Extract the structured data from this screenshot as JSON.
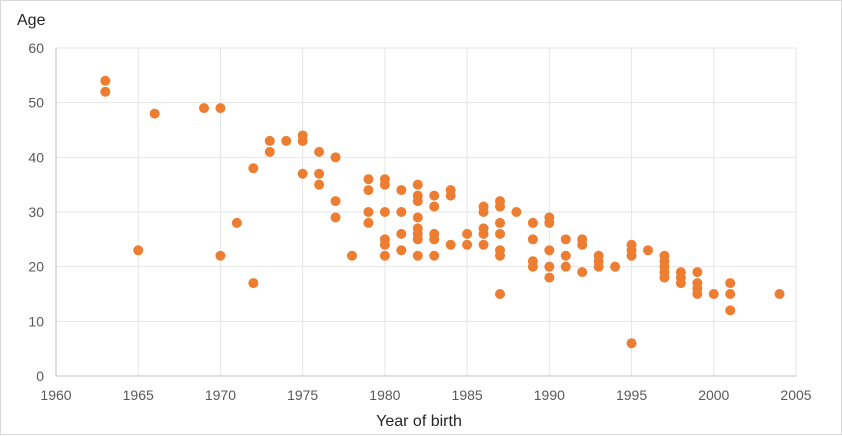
{
  "chart_data": {
    "type": "scatter",
    "title": "",
    "xlabel": "Year of birth",
    "ylabel": "Age",
    "xlim": [
      1960,
      2005
    ],
    "ylim": [
      0,
      60
    ],
    "x_ticks": [
      1960,
      1965,
      1970,
      1975,
      1980,
      1985,
      1990,
      1995,
      2000,
      2005
    ],
    "y_ticks": [
      0,
      10,
      20,
      30,
      40,
      50,
      60
    ],
    "grid": true,
    "legend": "none",
    "point_color": "#ed7d31",
    "points": [
      {
        "x": 1963,
        "y": 54
      },
      {
        "x": 1963,
        "y": 52
      },
      {
        "x": 1965,
        "y": 23
      },
      {
        "x": 1966,
        "y": 48
      },
      {
        "x": 1969,
        "y": 49
      },
      {
        "x": 1970,
        "y": 49
      },
      {
        "x": 1970,
        "y": 22
      },
      {
        "x": 1971,
        "y": 28
      },
      {
        "x": 1972,
        "y": 38
      },
      {
        "x": 1972,
        "y": 17
      },
      {
        "x": 1973,
        "y": 43
      },
      {
        "x": 1973,
        "y": 41
      },
      {
        "x": 1974,
        "y": 43
      },
      {
        "x": 1975,
        "y": 44
      },
      {
        "x": 1975,
        "y": 43
      },
      {
        "x": 1975,
        "y": 37
      },
      {
        "x": 1976,
        "y": 41
      },
      {
        "x": 1976,
        "y": 37
      },
      {
        "x": 1976,
        "y": 35
      },
      {
        "x": 1977,
        "y": 40
      },
      {
        "x": 1977,
        "y": 32
      },
      {
        "x": 1977,
        "y": 29
      },
      {
        "x": 1978,
        "y": 22
      },
      {
        "x": 1979,
        "y": 36
      },
      {
        "x": 1979,
        "y": 34
      },
      {
        "x": 1979,
        "y": 30
      },
      {
        "x": 1979,
        "y": 28
      },
      {
        "x": 1980,
        "y": 36
      },
      {
        "x": 1980,
        "y": 35
      },
      {
        "x": 1980,
        "y": 30
      },
      {
        "x": 1980,
        "y": 25
      },
      {
        "x": 1980,
        "y": 24
      },
      {
        "x": 1980,
        "y": 22
      },
      {
        "x": 1981,
        "y": 34
      },
      {
        "x": 1981,
        "y": 30
      },
      {
        "x": 1981,
        "y": 26
      },
      {
        "x": 1981,
        "y": 23
      },
      {
        "x": 1982,
        "y": 35
      },
      {
        "x": 1982,
        "y": 33
      },
      {
        "x": 1982,
        "y": 32
      },
      {
        "x": 1982,
        "y": 29
      },
      {
        "x": 1982,
        "y": 27
      },
      {
        "x": 1982,
        "y": 26
      },
      {
        "x": 1982,
        "y": 25
      },
      {
        "x": 1982,
        "y": 22
      },
      {
        "x": 1983,
        "y": 33
      },
      {
        "x": 1983,
        "y": 31
      },
      {
        "x": 1983,
        "y": 26
      },
      {
        "x": 1983,
        "y": 25
      },
      {
        "x": 1983,
        "y": 22
      },
      {
        "x": 1984,
        "y": 34
      },
      {
        "x": 1984,
        "y": 33
      },
      {
        "x": 1984,
        "y": 24
      },
      {
        "x": 1985,
        "y": 26
      },
      {
        "x": 1985,
        "y": 24
      },
      {
        "x": 1986,
        "y": 31
      },
      {
        "x": 1986,
        "y": 30
      },
      {
        "x": 1986,
        "y": 27
      },
      {
        "x": 1986,
        "y": 26
      },
      {
        "x": 1986,
        "y": 24
      },
      {
        "x": 1987,
        "y": 32
      },
      {
        "x": 1987,
        "y": 31
      },
      {
        "x": 1987,
        "y": 28
      },
      {
        "x": 1987,
        "y": 26
      },
      {
        "x": 1987,
        "y": 23
      },
      {
        "x": 1987,
        "y": 22
      },
      {
        "x": 1987,
        "y": 15
      },
      {
        "x": 1988,
        "y": 30
      },
      {
        "x": 1989,
        "y": 28
      },
      {
        "x": 1989,
        "y": 25
      },
      {
        "x": 1989,
        "y": 21
      },
      {
        "x": 1989,
        "y": 20
      },
      {
        "x": 1990,
        "y": 29
      },
      {
        "x": 1990,
        "y": 28
      },
      {
        "x": 1990,
        "y": 23
      },
      {
        "x": 1990,
        "y": 20
      },
      {
        "x": 1990,
        "y": 18
      },
      {
        "x": 1991,
        "y": 25
      },
      {
        "x": 1991,
        "y": 22
      },
      {
        "x": 1991,
        "y": 20
      },
      {
        "x": 1992,
        "y": 25
      },
      {
        "x": 1992,
        "y": 24
      },
      {
        "x": 1992,
        "y": 19
      },
      {
        "x": 1993,
        "y": 22
      },
      {
        "x": 1993,
        "y": 21
      },
      {
        "x": 1993,
        "y": 20
      },
      {
        "x": 1994,
        "y": 20
      },
      {
        "x": 1995,
        "y": 24
      },
      {
        "x": 1995,
        "y": 23
      },
      {
        "x": 1995,
        "y": 22
      },
      {
        "x": 1995,
        "y": 6
      },
      {
        "x": 1996,
        "y": 23
      },
      {
        "x": 1997,
        "y": 22
      },
      {
        "x": 1997,
        "y": 21
      },
      {
        "x": 1997,
        "y": 20
      },
      {
        "x": 1997,
        "y": 19
      },
      {
        "x": 1997,
        "y": 18
      },
      {
        "x": 1998,
        "y": 19
      },
      {
        "x": 1998,
        "y": 18
      },
      {
        "x": 1998,
        "y": 17
      },
      {
        "x": 1999,
        "y": 19
      },
      {
        "x": 1999,
        "y": 17
      },
      {
        "x": 1999,
        "y": 16
      },
      {
        "x": 1999,
        "y": 15
      },
      {
        "x": 2000,
        "y": 15
      },
      {
        "x": 2001,
        "y": 17
      },
      {
        "x": 2001,
        "y": 15
      },
      {
        "x": 2001,
        "y": 12
      },
      {
        "x": 2004,
        "y": 15
      }
    ]
  }
}
